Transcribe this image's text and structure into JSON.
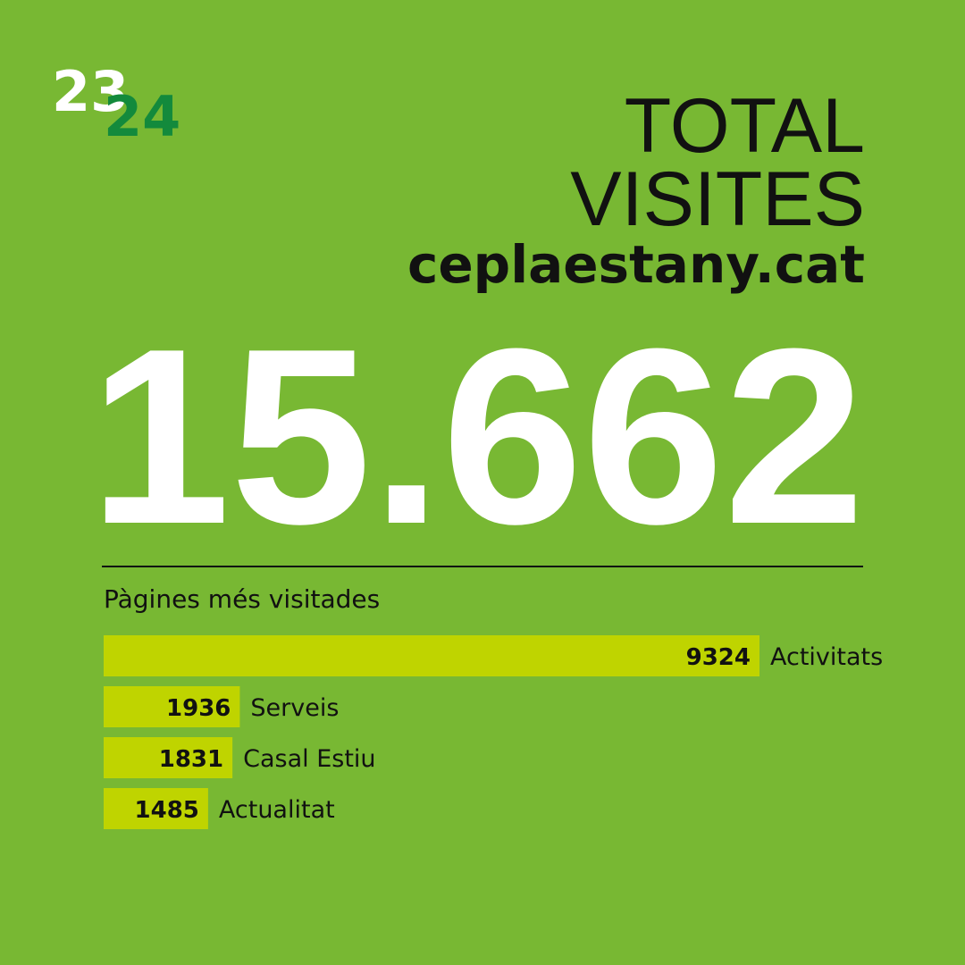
{
  "logo": {
    "top": "23",
    "bottom": "24"
  },
  "header": {
    "line1": "TOTAL",
    "line2": "VISITES",
    "site": "ceplaestany.cat"
  },
  "total": "15.662",
  "chart_data": {
    "type": "bar",
    "orientation": "horizontal",
    "title": "Pàgines més visitades",
    "categories": [
      "Activitats",
      "Serveis",
      "Casal Estiu",
      "Actualitat"
    ],
    "values": [
      9324,
      1936,
      1831,
      1485
    ],
    "color": "#bfd400"
  }
}
